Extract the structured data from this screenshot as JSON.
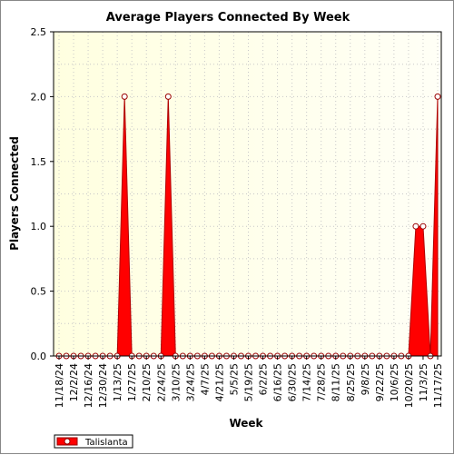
{
  "chart_data": {
    "type": "area",
    "title": "Average Players Connected By Week",
    "xlabel": "Week",
    "ylabel": "Players Connected",
    "ylim": [
      0,
      2.5
    ],
    "yticks": [
      "0.0",
      "0.5",
      "1.0",
      "1.5",
      "2.0",
      "2.5"
    ],
    "x_tick_labels": [
      "11/18/24",
      "12/2/24",
      "12/16/24",
      "12/30/24",
      "1/13/25",
      "1/27/25",
      "2/10/25",
      "2/24/25",
      "3/10/25",
      "3/24/25",
      "4/7/25",
      "4/21/25",
      "5/5/25",
      "5/19/25",
      "6/2/25",
      "6/16/25",
      "6/30/25",
      "7/14/25",
      "7/28/25",
      "8/11/25",
      "8/25/25",
      "9/8/25",
      "9/22/25",
      "10/6/25",
      "10/20/25",
      "11/3/25",
      "11/17/25"
    ],
    "x": [
      "11/18/24",
      "11/25/24",
      "12/2/24",
      "12/9/24",
      "12/16/24",
      "12/23/24",
      "12/30/24",
      "1/6/25",
      "1/13/25",
      "1/20/25",
      "1/27/25",
      "2/3/25",
      "2/10/25",
      "2/17/25",
      "2/24/25",
      "3/3/25",
      "3/10/25",
      "3/17/25",
      "3/24/25",
      "3/31/25",
      "4/7/25",
      "4/14/25",
      "4/21/25",
      "4/28/25",
      "5/5/25",
      "5/12/25",
      "5/19/25",
      "5/26/25",
      "6/2/25",
      "6/9/25",
      "6/16/25",
      "6/23/25",
      "6/30/25",
      "7/7/25",
      "7/14/25",
      "7/21/25",
      "7/28/25",
      "8/4/25",
      "8/11/25",
      "8/18/25",
      "8/25/25",
      "9/1/25",
      "9/8/25",
      "9/15/25",
      "9/22/25",
      "9/29/25",
      "10/6/25",
      "10/13/25",
      "10/20/25",
      "10/27/25",
      "11/3/25",
      "11/10/25",
      "11/17/25"
    ],
    "series": [
      {
        "name": "Talislanta",
        "values": [
          0,
          0,
          0,
          0,
          0,
          0,
          0,
          0,
          0,
          2,
          0,
          0,
          0,
          0,
          0,
          2,
          0,
          0,
          0,
          0,
          0,
          0,
          0,
          0,
          0,
          0,
          0,
          0,
          0,
          0,
          0,
          0,
          0,
          0,
          0,
          0,
          0,
          0,
          0,
          0,
          0,
          0,
          0,
          0,
          0,
          0,
          0,
          0,
          0,
          1,
          1,
          0,
          2
        ],
        "color": "#ff0000"
      }
    ],
    "grid": true,
    "plot_background": [
      "#ffffe0",
      "#fffff6"
    ],
    "legend_position": "bottom-left"
  }
}
